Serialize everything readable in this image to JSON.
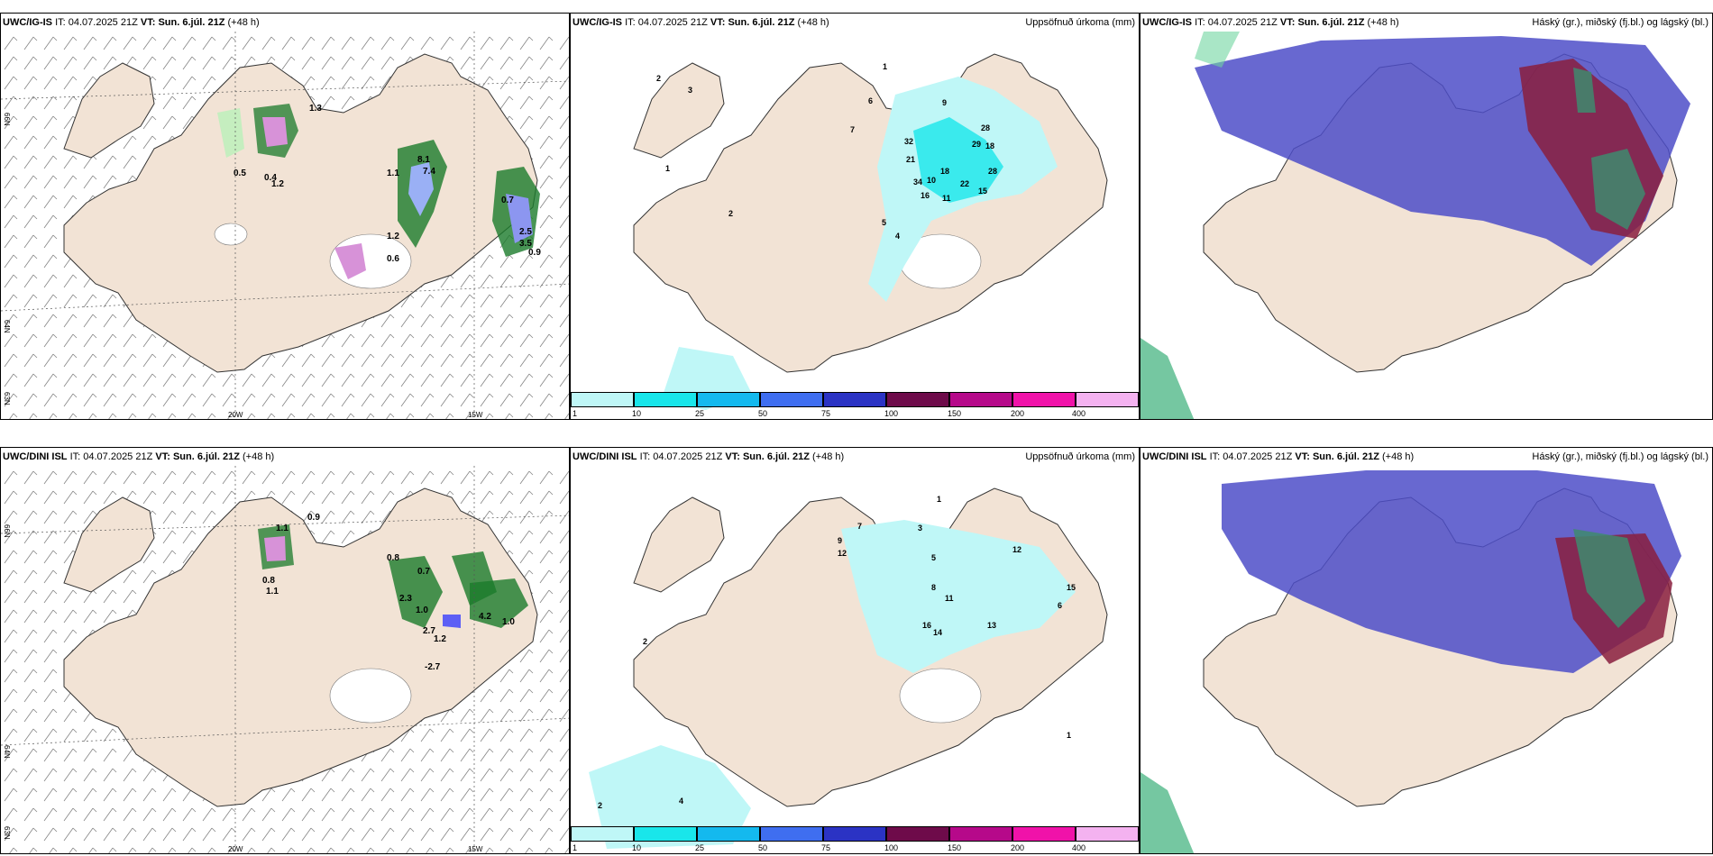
{
  "figure": {
    "rows": [
      {
        "model": "UWC/IG-IS",
        "it_label": "IT:",
        "it_value": "04.07.2025 21Z",
        "vt_label": "VT:",
        "vt_value": "Sun. 6.júl. 21Z",
        "lead": "(+48 h)",
        "precip_title": "Uppsöfnuð úrkoma (mm)",
        "cloud_title": "Háský (gr.), miðský (fj.bl.) og lágský (bl.)",
        "wind_labels": [
          "0.5",
          "0.4",
          "1.2",
          "1.3",
          "1.1",
          "8.1",
          "7.4",
          "1.2",
          "0.6",
          "0.7",
          "0.9",
          "2.5",
          "3.5"
        ],
        "precip_labels": [
          "1",
          "2",
          "3",
          "7",
          "6",
          "9",
          "32",
          "21",
          "18",
          "34",
          "10",
          "16",
          "11",
          "22",
          "15",
          "29",
          "18",
          "28",
          "28",
          "5",
          "4",
          "2",
          "1"
        ],
        "cmap_labels": [
          "1",
          "10",
          "25",
          "50",
          "75",
          "100",
          "150",
          "200",
          "400"
        ]
      },
      {
        "model": "UWC/DINI ISL",
        "it_label": "IT:",
        "it_value": "04.07.2025 21Z",
        "vt_label": "VT:",
        "vt_value": "Sun. 6.júl. 21Z",
        "lead": "(+48 h)",
        "precip_title": "Uppsöfnuð úrkoma (mm)",
        "cloud_title": "Háský (gr.), miðský (fj.bl.) og lágský (bl.)",
        "wind_labels": [
          "1.1",
          "0.9",
          "0.8",
          "1.1",
          "0.8",
          "0.7",
          "2.3",
          "1.0",
          "2.7",
          "1.2",
          "-2.7",
          "1.0",
          "4.2"
        ],
        "precip_labels": [
          "1",
          "2",
          "3",
          "9",
          "7",
          "12",
          "5",
          "8",
          "16",
          "14",
          "11",
          "13",
          "12",
          "15",
          "6",
          "4",
          "2",
          "1"
        ],
        "cmap_labels": [
          "1",
          "10",
          "25",
          "50",
          "75",
          "100",
          "150",
          "200",
          "400"
        ]
      }
    ],
    "axes": {
      "lon_20": "20W",
      "lon_15": "15W",
      "lat_66": "66N",
      "lat_64": "64N",
      "lat_63": "63N"
    },
    "colorbar_colors": [
      "#bff7f7",
      "#19e6ea",
      "#14b9ee",
      "#3f6ef0",
      "#2b33c4",
      "#6e0b4a",
      "#b6098a",
      "#f012a9",
      "#f4b2f0"
    ]
  }
}
